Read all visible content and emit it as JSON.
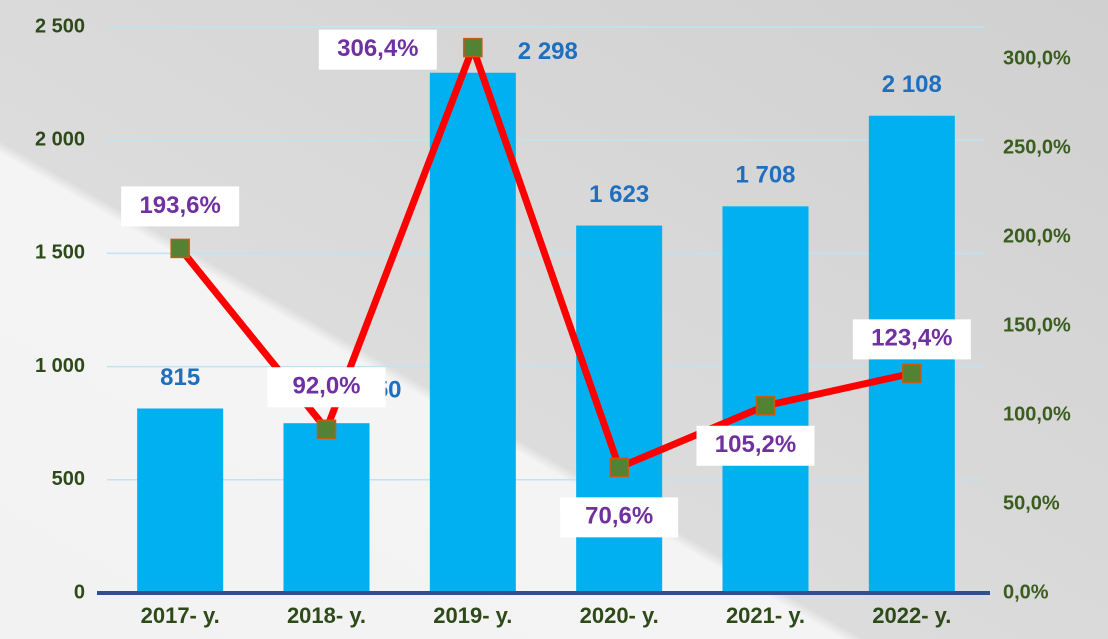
{
  "chart_data": {
    "type": "bar-line",
    "categories": [
      "2017- y.",
      "2018- y.",
      "2019- y.",
      "2020- y.",
      "2021- y.",
      "2022- y."
    ],
    "series": [
      {
        "type": "bar",
        "color": "#00b0f0",
        "label_color": "#1f6fbf",
        "values": [
          815,
          750,
          2298,
          1623,
          1708,
          2108
        ],
        "value_labels": [
          "815",
          "750",
          "2 298",
          "1 623",
          "1 708",
          "2 108"
        ]
      },
      {
        "type": "line",
        "axis": "y2",
        "color": "#ff0000",
        "marker_color": "#548235",
        "label_color": "#7030a0",
        "values": [
          193.6,
          92.0,
          306.4,
          70.6,
          105.2,
          123.4
        ],
        "value_labels": [
          "193,6%",
          "92,0%",
          "306,4%",
          "70,6%",
          "105,2%",
          "123,4%"
        ]
      }
    ],
    "ylim": [
      0,
      2500
    ],
    "yticks": [
      0,
      500,
      {
        "value": 1000,
        "label": "1 000"
      },
      {
        "value": 1500,
        "label": "1 500"
      },
      {
        "value": 2000,
        "label": "2 000"
      },
      {
        "value": 2500,
        "label": "2 500"
      }
    ],
    "y2lim": [
      0,
      318
    ],
    "y2ticks": [
      {
        "value": 0,
        "label": "0,0%"
      },
      {
        "value": 50,
        "label": "50,0%"
      },
      {
        "value": 100,
        "label": "100,0%"
      },
      {
        "value": 150,
        "label": "150,0%"
      },
      {
        "value": 200,
        "label": "200,0%"
      },
      {
        "value": 250,
        "label": "250,0%"
      },
      {
        "value": 300,
        "label": "300,0%"
      }
    ],
    "grid": true
  }
}
